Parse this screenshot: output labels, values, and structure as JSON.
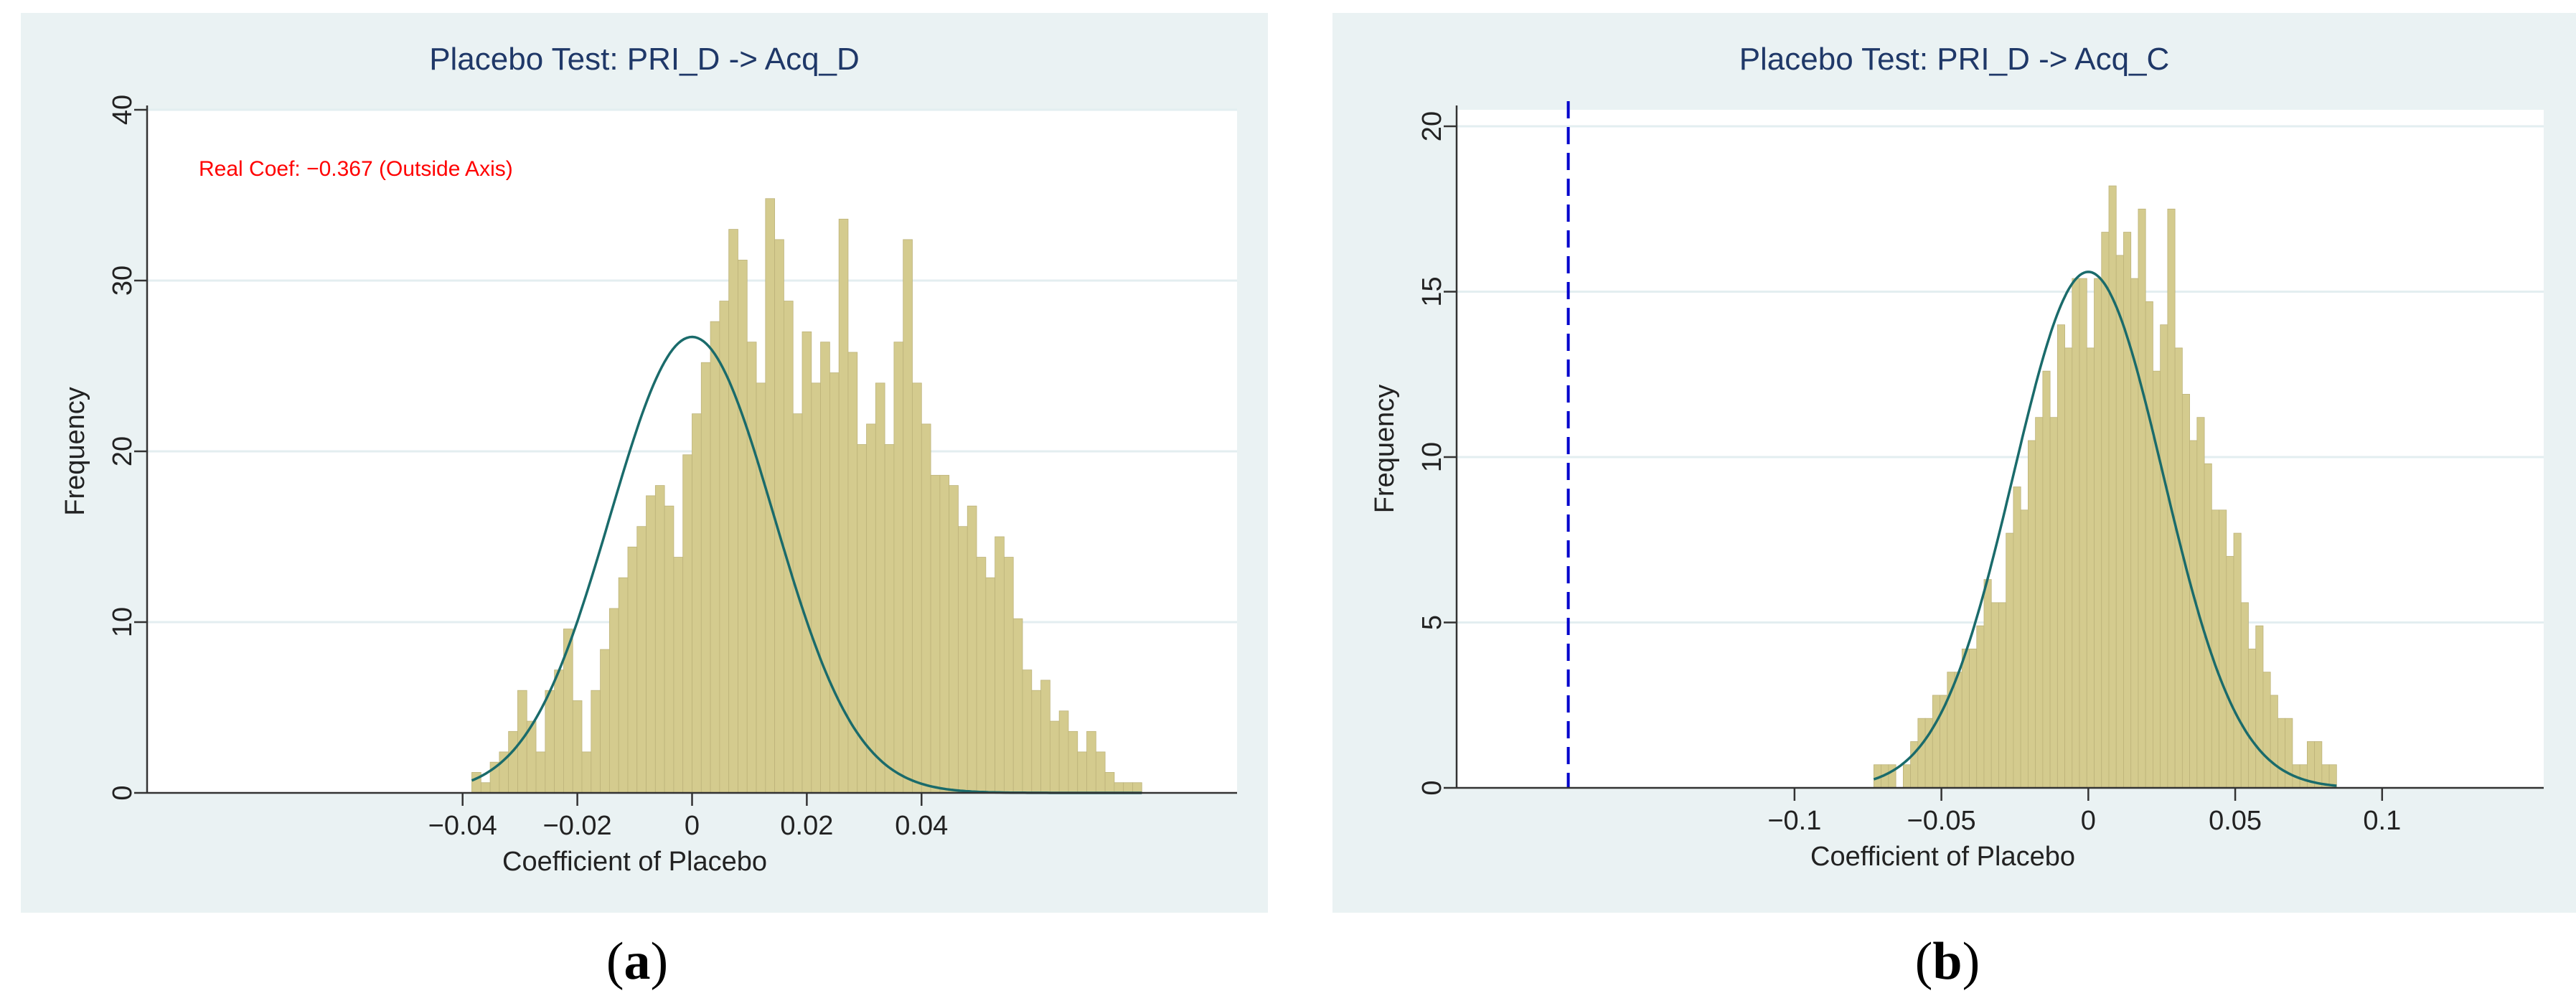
{
  "colors": {
    "panel_bg": "#eaf2f3",
    "plot_bg": "#ffffff",
    "bar_fill": "#d4cb8e",
    "bar_edge": "#bdb37a",
    "curve": "#1a6b6b",
    "grid": "#e3eef0",
    "axis": "#333333",
    "title": "#1f3868",
    "annotation": "#ff0000",
    "dashed_line": "#0000cc"
  },
  "chart_data": [
    {
      "type": "histogram",
      "panel_label": "a",
      "title": "Placebo Test: PRI_D -> Acq_D",
      "xlabel": "Coefficient of Placebo",
      "ylabel": "Frequency",
      "xlim": [
        -0.095,
        0.095
      ],
      "ylim": [
        0,
        40
      ],
      "xticks": [
        -0.04,
        -0.02,
        0,
        0.02,
        0.04
      ],
      "xtick_labels": [
        "−0.04",
        "−0.02",
        "0",
        "0.02",
        "0.04"
      ],
      "yticks": [
        0,
        10,
        20,
        30,
        40
      ],
      "grid": true,
      "annotation": "Real Coef: −0.367 (Outside Axis)",
      "bin_width": 0.0016,
      "bin_start": -0.0384,
      "values": [
        1.2,
        0.6,
        1.8,
        2.4,
        3.6,
        6.0,
        4.2,
        2.4,
        6.0,
        7.2,
        9.6,
        5.4,
        2.4,
        6.0,
        8.4,
        10.8,
        12.6,
        14.4,
        15.6,
        17.4,
        18.0,
        16.8,
        13.8,
        19.8,
        22.2,
        25.2,
        27.6,
        28.8,
        33.0,
        31.2,
        26.4,
        24.0,
        34.8,
        32.4,
        28.8,
        22.2,
        27.0,
        24.0,
        26.4,
        24.6,
        33.6,
        25.8,
        20.4,
        21.6,
        24.0,
        20.4,
        26.4,
        32.4,
        24.0,
        21.6,
        18.6,
        18.6,
        18.0,
        15.6,
        16.8,
        13.8,
        12.6,
        15.0,
        13.8,
        10.2,
        7.2,
        6.0,
        6.6,
        4.2,
        4.8,
        3.6,
        2.4,
        3.6,
        2.4,
        1.2,
        0.6,
        0.6,
        0.6
      ],
      "normal_curve": {
        "mean": 0.0,
        "sd": 0.0143,
        "peak": 26.7
      }
    },
    {
      "type": "histogram",
      "panel_label": "b",
      "title": "Placebo Test: PRI_D -> Acq_C",
      "xlabel": "Coefficient of Placebo",
      "ylabel": "Frequency",
      "xlim": [
        -0.215,
        0.155
      ],
      "ylim": [
        0,
        20.5
      ],
      "xticks": [
        -0.1,
        -0.05,
        0,
        0.05,
        0.1
      ],
      "xtick_labels": [
        "−0.1",
        "−0.05",
        "0",
        "0.05",
        "0.1"
      ],
      "yticks": [
        0,
        5,
        10,
        15,
        20
      ],
      "grid": true,
      "dashed_vline_x": -0.177,
      "bin_width": 0.0025,
      "bin_start": -0.073,
      "values": [
        0.7,
        0.7,
        0.7,
        0.0,
        0.7,
        1.4,
        2.1,
        2.1,
        2.8,
        2.8,
        3.5,
        3.5,
        4.2,
        4.2,
        4.9,
        6.3,
        5.6,
        5.6,
        7.7,
        9.1,
        8.4,
        10.5,
        11.2,
        12.6,
        11.2,
        14.0,
        13.3,
        15.4,
        15.4,
        13.3,
        15.4,
        16.8,
        18.2,
        16.1,
        16.8,
        15.4,
        17.5,
        14.7,
        12.6,
        14.0,
        17.5,
        13.3,
        11.9,
        10.5,
        11.2,
        9.8,
        8.4,
        8.4,
        7.0,
        7.7,
        5.6,
        4.2,
        4.9,
        3.5,
        2.8,
        2.1,
        2.1,
        0.7,
        0.7,
        1.4,
        1.4,
        0.7,
        0.7
      ],
      "normal_curve": {
        "mean": 0.0,
        "sd": 0.0255,
        "peak": 15.6
      }
    }
  ],
  "captions": {
    "a": "a",
    "b": "b"
  }
}
